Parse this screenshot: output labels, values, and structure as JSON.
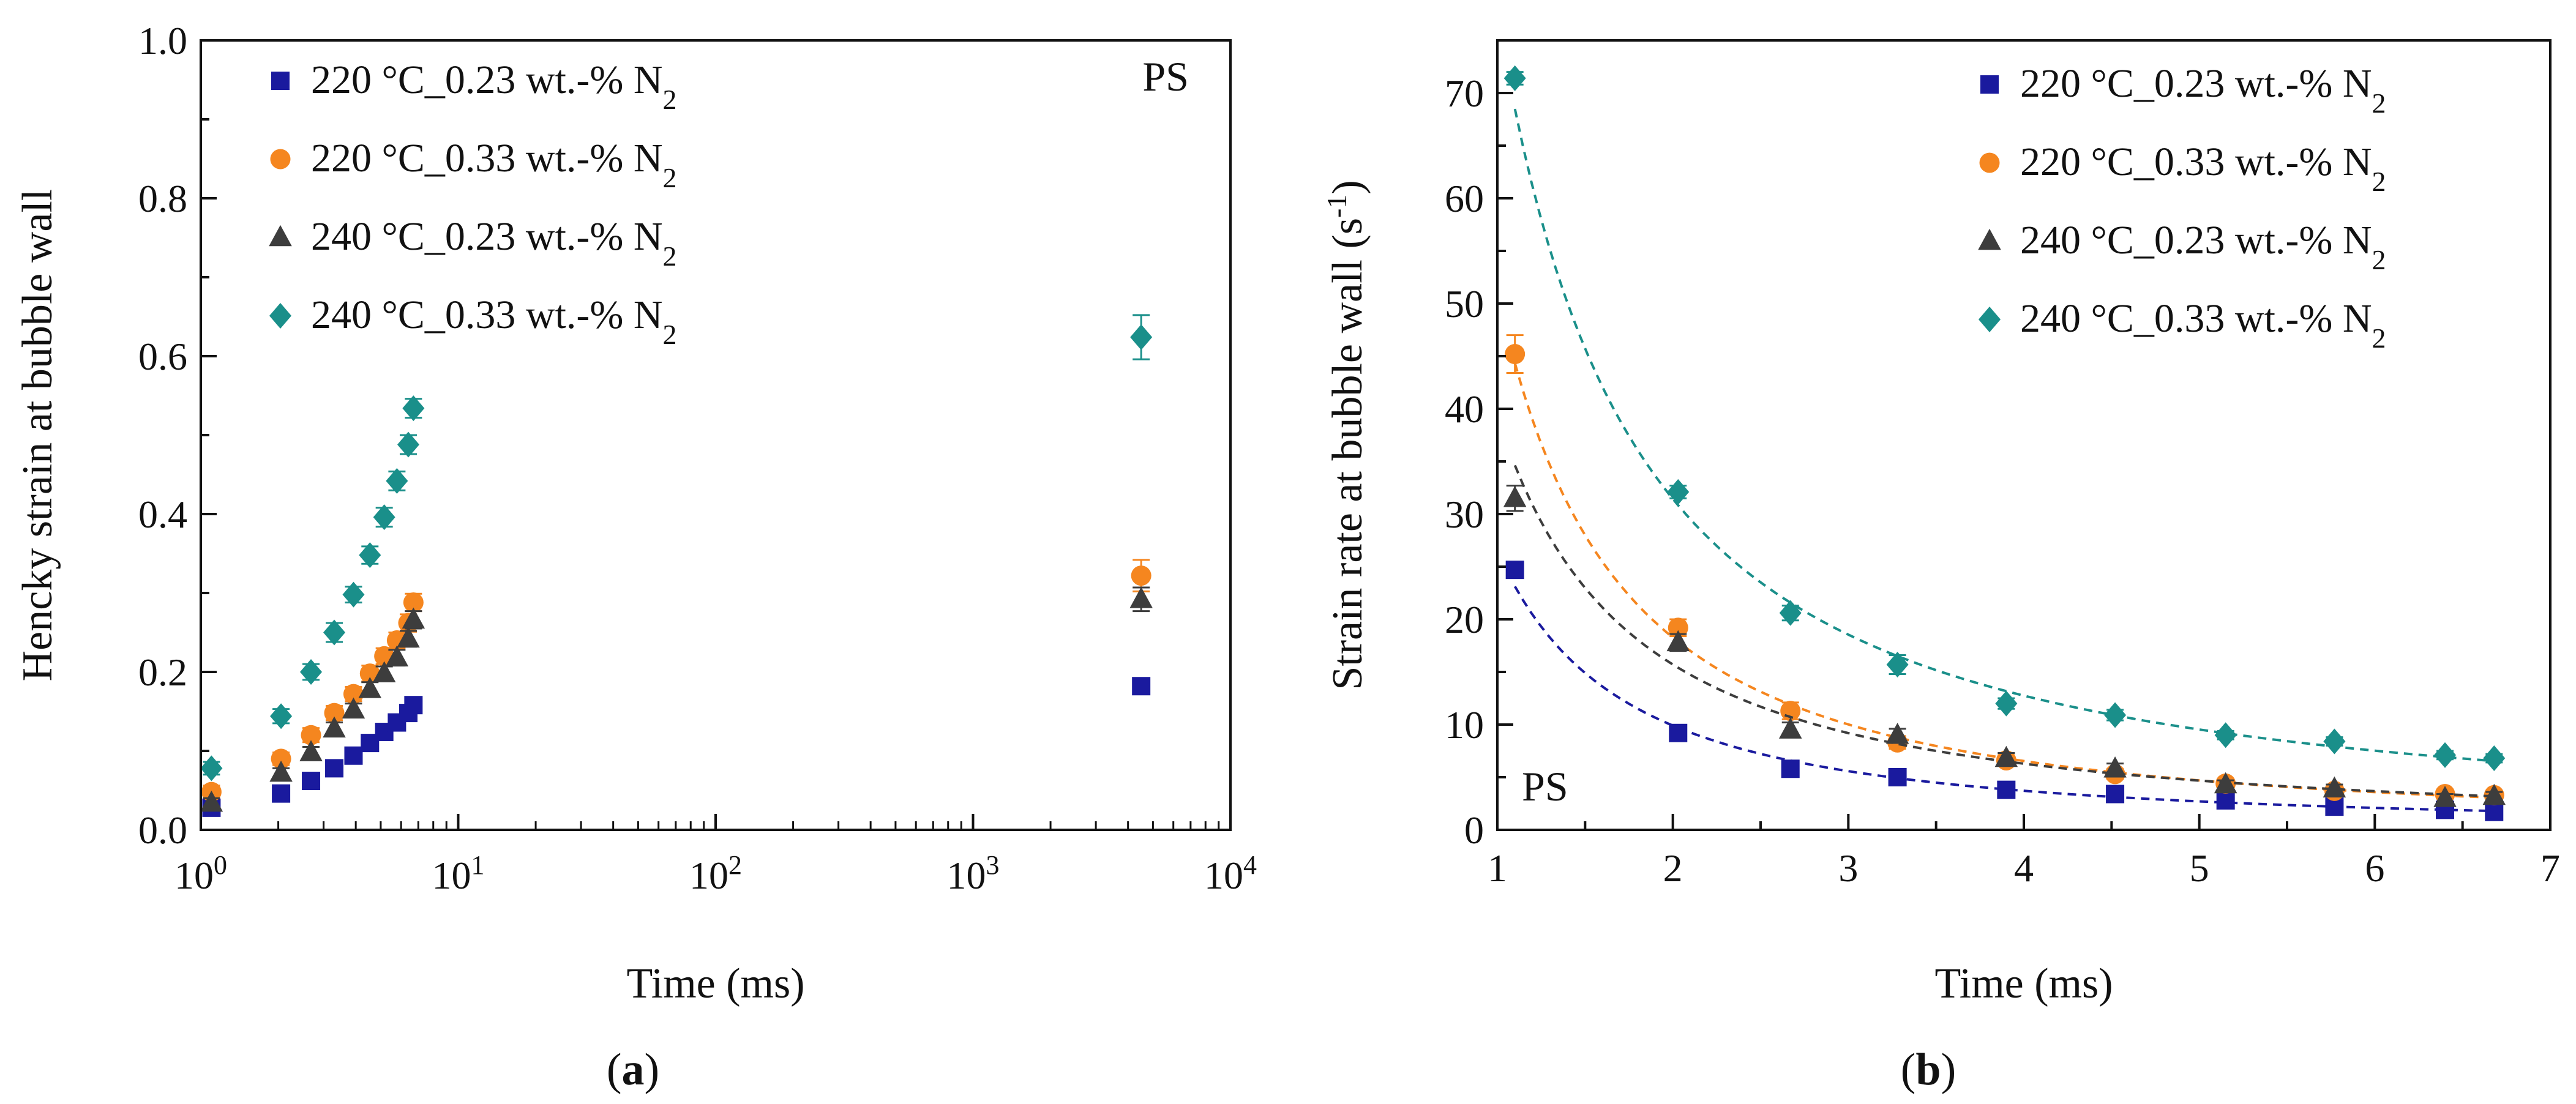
{
  "chart_data": [
    {
      "panel": "(a)",
      "type": "scatter",
      "title": "",
      "xlabel": "Time (ms)",
      "ylabel": "Hencky strain at bubble wall",
      "annotation": "PS",
      "xscale": "log",
      "xlim": [
        1,
        10000
      ],
      "ylim": [
        0,
        1.0
      ],
      "x_ticks": [
        {
          "value": 1,
          "base": "10",
          "exp": "0"
        },
        {
          "value": 10,
          "base": "10",
          "exp": "1"
        },
        {
          "value": 100,
          "base": "10",
          "exp": "2"
        },
        {
          "value": 1000,
          "base": "10",
          "exp": "3"
        },
        {
          "value": 10000,
          "base": "10",
          "exp": "4"
        }
      ],
      "y_ticks": [
        "0.0",
        "0.2",
        "0.4",
        "0.6",
        "0.8",
        "1.0"
      ],
      "legend_position": "top-left",
      "grid": false,
      "series": [
        {
          "name": "220 °C_0.23 wt.-% N2",
          "name_main": "220 °C_0.23 wt.-% N",
          "name_sub": "2",
          "color": "#1a1a9e",
          "marker": "square",
          "x": [
            1.1,
            2.05,
            2.68,
            3.3,
            3.92,
            4.54,
            5.16,
            5.78,
            6.4,
            6.7,
            4500
          ],
          "y": [
            0.028,
            0.046,
            0.062,
            0.078,
            0.094,
            0.11,
            0.124,
            0.136,
            0.148,
            0.158,
            0.182
          ],
          "err": [
            0.005,
            0.005,
            0.006,
            0.006,
            0.006,
            0.007,
            0.007,
            0.007,
            0.008,
            0.008,
            0.009
          ]
        },
        {
          "name": "220 °C_0.33 wt.-% N2",
          "name_main": "220 °C_0.33 wt.-% N",
          "name_sub": "2",
          "color": "#f5861f",
          "marker": "circle",
          "x": [
            1.1,
            2.05,
            2.68,
            3.3,
            3.92,
            4.54,
            5.16,
            5.78,
            6.4,
            6.7,
            4500
          ],
          "y": [
            0.048,
            0.09,
            0.12,
            0.148,
            0.172,
            0.198,
            0.22,
            0.24,
            0.262,
            0.288,
            0.322
          ],
          "err": [
            0.008,
            0.008,
            0.009,
            0.009,
            0.009,
            0.01,
            0.01,
            0.01,
            0.011,
            0.011,
            0.02
          ]
        },
        {
          "name": "240 °C_0.23 wt.-% N2",
          "name_main": "240 °C_0.23 wt.-% N",
          "name_sub": "2",
          "color": "#3d3d3d",
          "marker": "triangle",
          "x": [
            1.1,
            2.05,
            2.68,
            3.3,
            3.92,
            4.54,
            5.16,
            5.78,
            6.4,
            6.7,
            4500
          ],
          "y": [
            0.034,
            0.072,
            0.098,
            0.128,
            0.152,
            0.178,
            0.198,
            0.218,
            0.242,
            0.266,
            0.292
          ],
          "err": [
            0.006,
            0.006,
            0.007,
            0.008,
            0.008,
            0.009,
            0.009,
            0.01,
            0.01,
            0.011,
            0.015
          ]
        },
        {
          "name": "240 °C_0.33 wt.-% N2",
          "name_main": "240 °C_0.33 wt.-% N",
          "name_sub": "2",
          "color": "#1a8f8a",
          "marker": "diamond",
          "x": [
            1.1,
            2.05,
            2.68,
            3.3,
            3.92,
            4.54,
            5.16,
            5.78,
            6.4,
            6.7,
            4500
          ],
          "y": [
            0.078,
            0.144,
            0.2,
            0.25,
            0.298,
            0.348,
            0.396,
            0.442,
            0.488,
            0.534,
            0.624
          ],
          "err": [
            0.008,
            0.009,
            0.01,
            0.012,
            0.01,
            0.011,
            0.012,
            0.012,
            0.012,
            0.012,
            0.028
          ]
        }
      ]
    },
    {
      "panel": "(b)",
      "type": "scatter",
      "title": "",
      "xlabel": "Time (ms)",
      "ylabel_main": "Strain rate at bubble wall (s",
      "ylabel_sup": "-1",
      "ylabel_end": ")",
      "annotation": "PS",
      "xscale": "linear",
      "xlim": [
        1,
        7
      ],
      "ylim": [
        0,
        75
      ],
      "x_ticks": [
        "1",
        "2",
        "3",
        "4",
        "5",
        "6",
        "7"
      ],
      "y_ticks": [
        "0",
        "10",
        "20",
        "30",
        "40",
        "50",
        "60",
        "70"
      ],
      "legend_position": "top-right",
      "grid": false,
      "fits": "dashed",
      "series": [
        {
          "name": "220 °C_0.23 wt.-% N2",
          "name_main": "220 °C_0.23 wt.-% N",
          "name_sub": "2",
          "color": "#1a1a9e",
          "marker": "square",
          "x": [
            1.1,
            2.03,
            2.67,
            3.28,
            3.9,
            4.52,
            5.15,
            5.77,
            6.4,
            6.68
          ],
          "y": [
            24.7,
            9.2,
            5.8,
            5.0,
            3.8,
            3.4,
            2.8,
            2.2,
            1.9,
            1.7
          ],
          "err": [
            0.7,
            0.6,
            0.6,
            0.5,
            0.4,
            0.4,
            0.4,
            0.3,
            0.3,
            0.3
          ]
        },
        {
          "name": "220 °C_0.33 wt.-% N2",
          "name_main": "220 °C_0.33 wt.-% N",
          "name_sub": "2",
          "color": "#f5861f",
          "marker": "circle",
          "x": [
            1.1,
            2.03,
            2.67,
            3.28,
            3.9,
            4.52,
            5.15,
            5.77,
            6.4,
            6.68
          ],
          "y": [
            45.2,
            19.2,
            11.3,
            8.3,
            6.6,
            5.3,
            4.4,
            3.7,
            3.4,
            3.3
          ],
          "err": [
            1.8,
            0.8,
            0.8,
            0.6,
            0.5,
            0.5,
            0.4,
            0.4,
            0.4,
            0.4
          ]
        },
        {
          "name": "240 °C_0.23 wt.-% N2",
          "name_main": "240 °C_0.23 wt.-% N",
          "name_sub": "2",
          "color": "#3d3d3d",
          "marker": "triangle",
          "x": [
            1.1,
            2.03,
            2.67,
            3.28,
            3.9,
            4.52,
            5.15,
            5.77,
            6.4,
            6.68
          ],
          "y": [
            31.5,
            17.8,
            9.5,
            9.0,
            6.8,
            5.8,
            4.3,
            3.9,
            3.0,
            3.2
          ],
          "err": [
            1.2,
            0.8,
            0.7,
            0.6,
            0.5,
            0.5,
            0.4,
            0.4,
            0.4,
            0.4
          ]
        },
        {
          "name": "240 °C_0.33 wt.-% N2",
          "name_main": "240 °C_0.33 wt.-% N",
          "name_sub": "2",
          "color": "#1a8f8a",
          "marker": "diamond",
          "x": [
            1.1,
            2.03,
            2.67,
            3.28,
            3.9,
            4.52,
            5.15,
            5.77,
            6.4,
            6.68
          ],
          "y": [
            71.4,
            32.1,
            20.6,
            15.7,
            12.0,
            10.9,
            9.0,
            8.4,
            7.1,
            6.8
          ],
          "err": [
            0.6,
            0.6,
            0.7,
            0.9,
            0.5,
            0.5,
            0.4,
            0.4,
            0.4,
            0.4
          ]
        }
      ]
    }
  ]
}
